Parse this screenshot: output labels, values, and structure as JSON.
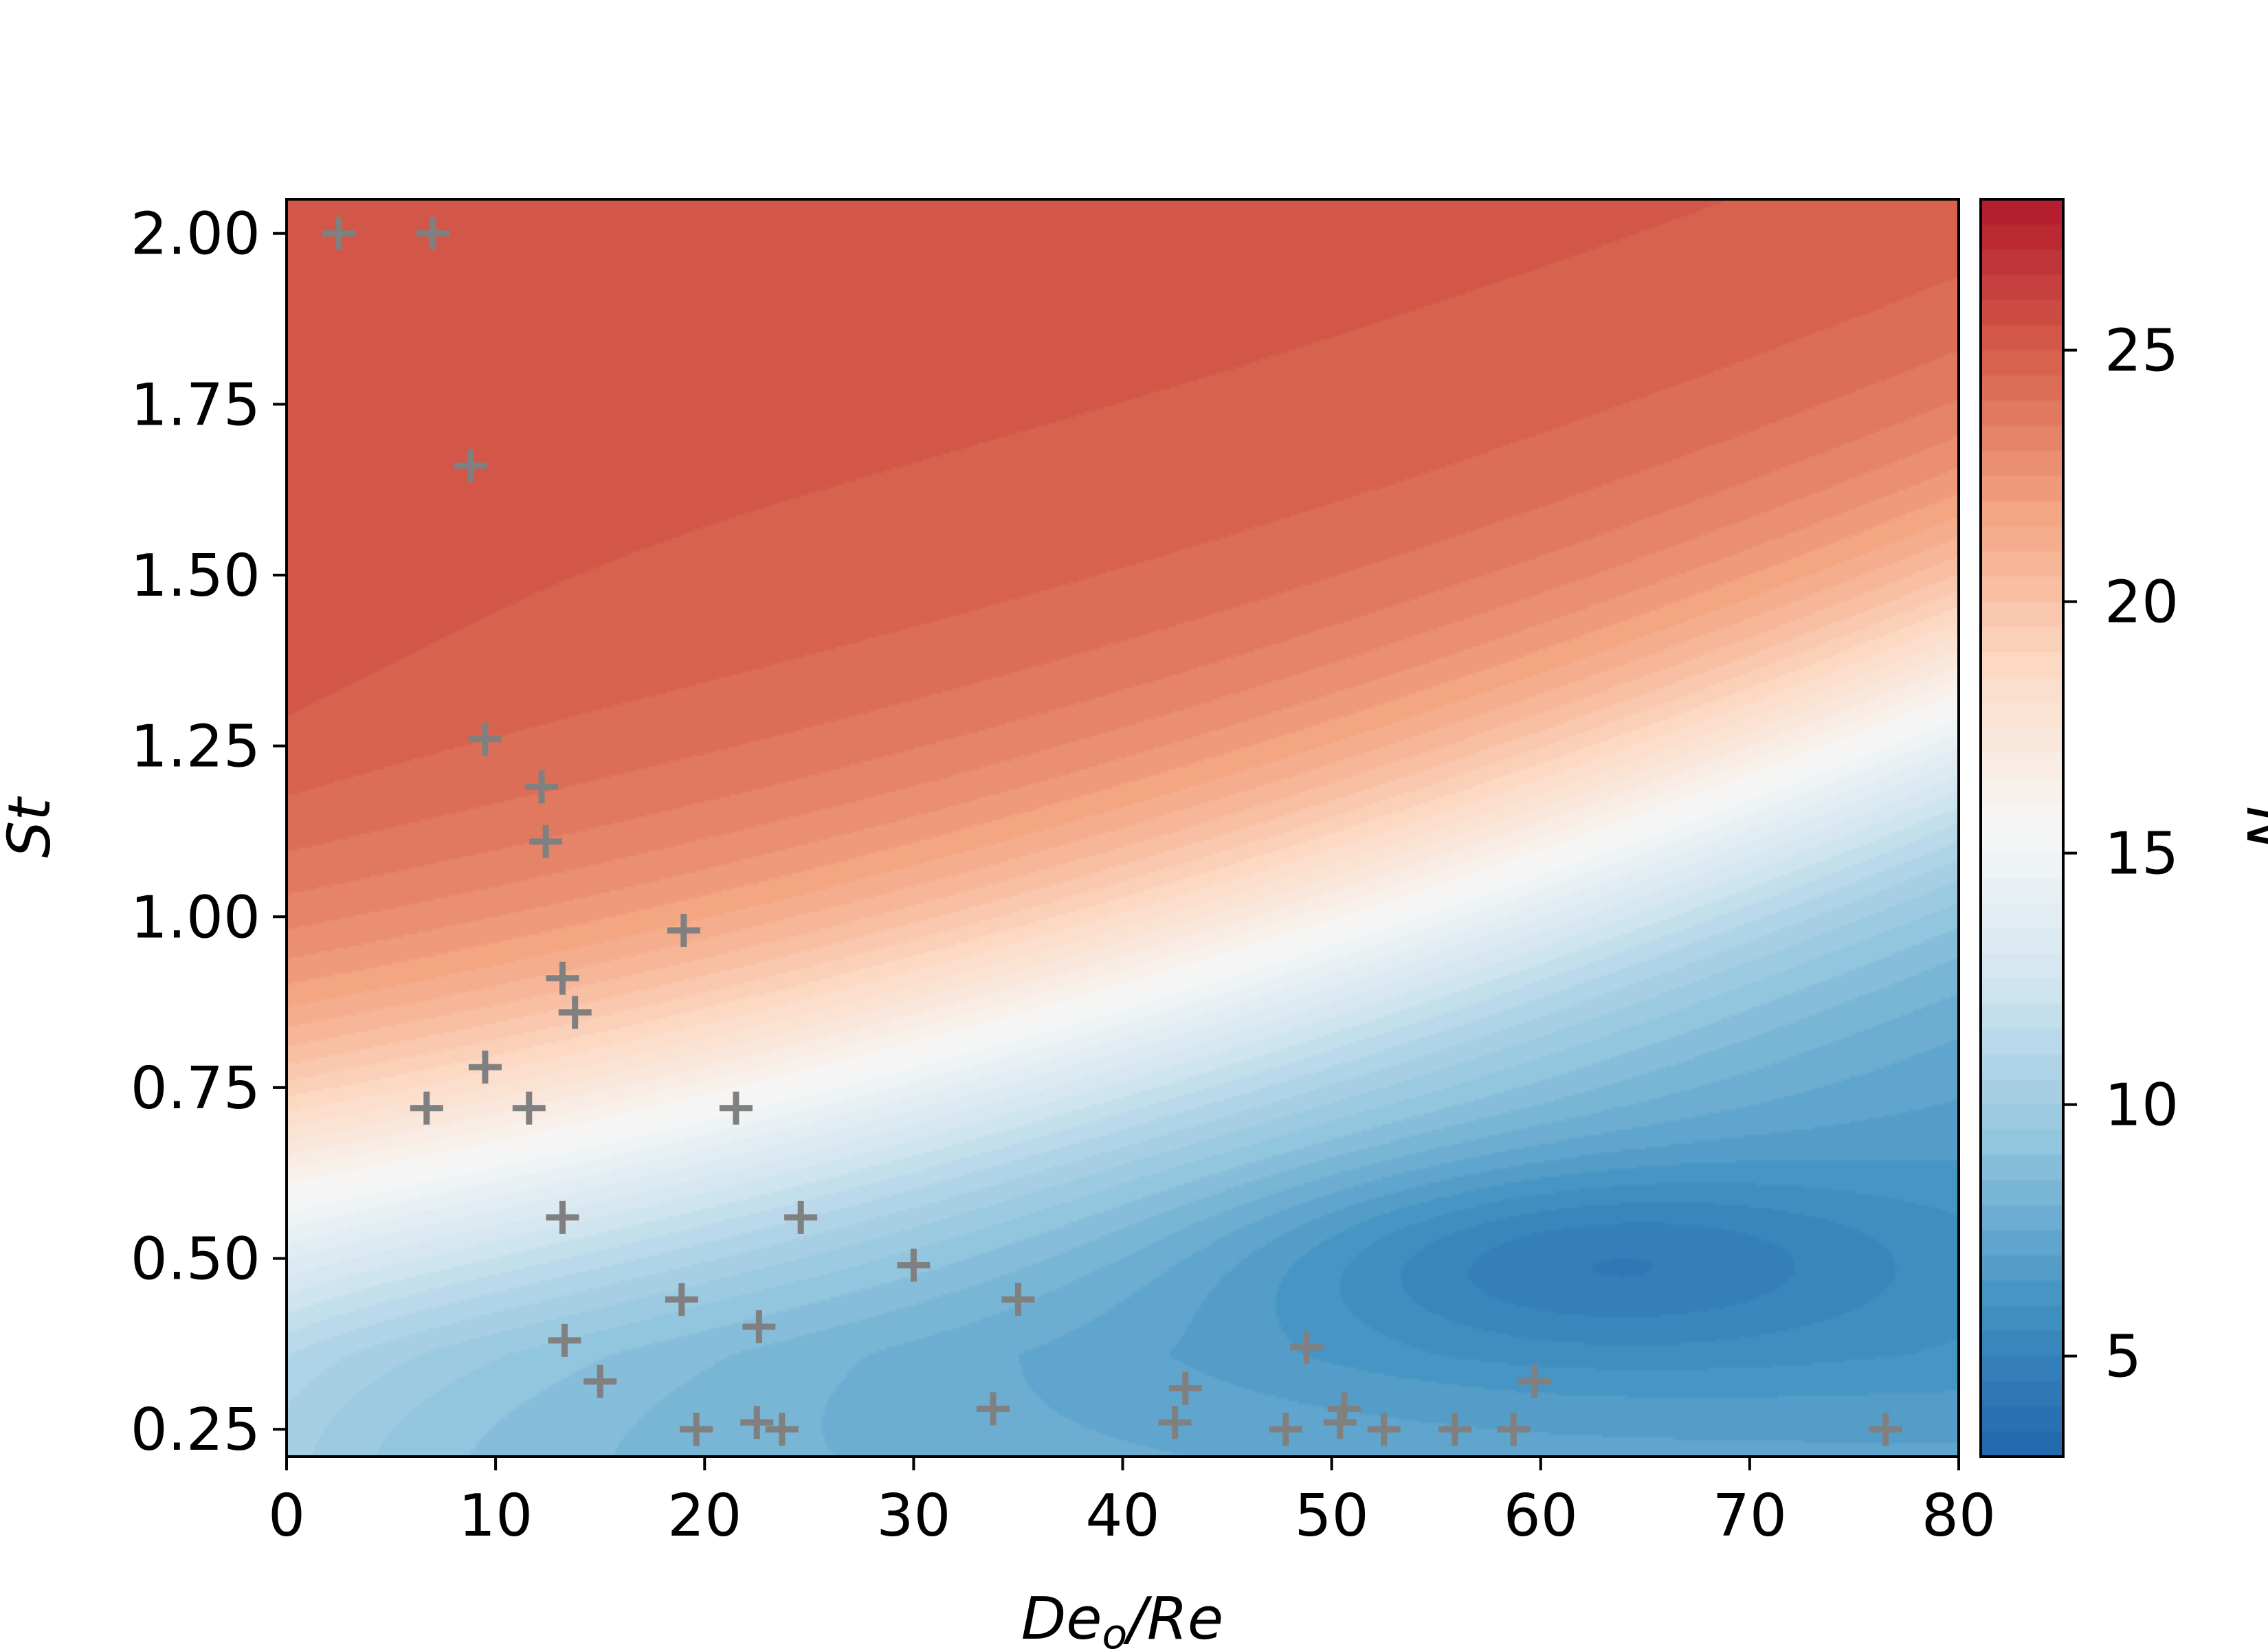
{
  "chart_data": {
    "type": "contour",
    "xlabel": "Deo/Re",
    "xlabel_main": "De",
    "xlabel_sub": "o",
    "xlabel_tail": "/Re",
    "ylabel": "St",
    "colorbar_label": "N",
    "xlim": [
      0,
      80
    ],
    "ylim": [
      0.21,
      2.05
    ],
    "x_ticks": [
      "0",
      "10",
      "20",
      "30",
      "40",
      "50",
      "60",
      "70",
      "80"
    ],
    "y_ticks": [
      "0.25",
      "0.50",
      "0.75",
      "1.00",
      "1.25",
      "1.50",
      "1.75",
      "2.00"
    ],
    "colorbar_ticks": [
      "5",
      "10",
      "15",
      "20",
      "25"
    ],
    "colorbar_range": [
      3,
      28
    ],
    "colormap": "RdBu_r",
    "grid": false,
    "legend": "none",
    "marker_color": "#808080",
    "series": [
      {
        "type": "scatter",
        "marker": "+",
        "points": [
          [
            2.5,
            2.0
          ],
          [
            7.0,
            2.0
          ],
          [
            8.8,
            1.66
          ],
          [
            9.5,
            1.26
          ],
          [
            12.2,
            1.19
          ],
          [
            12.4,
            1.11
          ],
          [
            19.0,
            0.98
          ],
          [
            13.2,
            0.91
          ],
          [
            13.8,
            0.86
          ],
          [
            9.5,
            0.78
          ],
          [
            6.7,
            0.72
          ],
          [
            11.6,
            0.72
          ],
          [
            21.5,
            0.72
          ],
          [
            13.2,
            0.56
          ],
          [
            24.6,
            0.56
          ],
          [
            30.0,
            0.49
          ],
          [
            18.9,
            0.44
          ],
          [
            35.0,
            0.44
          ],
          [
            22.6,
            0.4
          ],
          [
            13.3,
            0.38
          ],
          [
            15.0,
            0.32
          ],
          [
            19.6,
            0.25
          ],
          [
            22.5,
            0.26
          ],
          [
            23.7,
            0.25
          ],
          [
            33.8,
            0.28
          ],
          [
            42.5,
            0.26
          ],
          [
            43.0,
            0.31
          ],
          [
            47.8,
            0.25
          ],
          [
            48.8,
            0.37
          ],
          [
            50.4,
            0.26
          ],
          [
            50.6,
            0.28
          ],
          [
            52.5,
            0.25
          ],
          [
            55.9,
            0.25
          ],
          [
            58.7,
            0.25
          ],
          [
            59.7,
            0.32
          ],
          [
            76.5,
            0.25
          ]
        ]
      }
    ]
  }
}
